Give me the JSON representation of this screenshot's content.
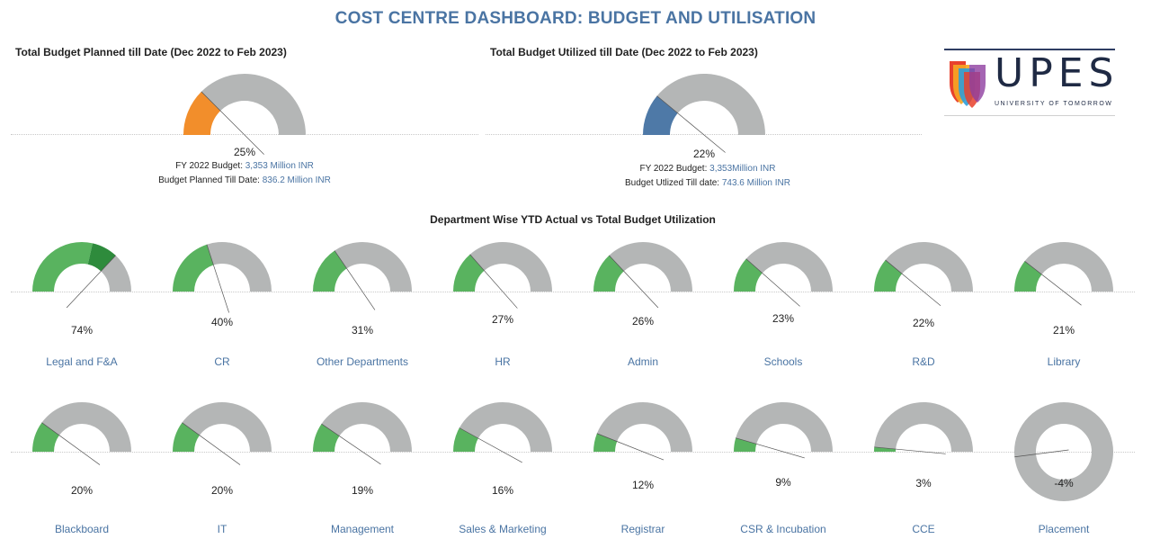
{
  "title": "COST CENTRE DASHBOARD: BUDGET AND UTILISATION",
  "logo": {
    "name": "UPES",
    "tagline": "UNIVERSITY OF TOMORROW"
  },
  "colors": {
    "orange": "#f28e2b",
    "blue": "#4e79a7",
    "green": "#59b35f",
    "dark_green": "#2e8b3c",
    "grey": "#b4b6b6"
  },
  "planned": {
    "title": "Total Budget Planned till Date (Dec 2022 to Feb 2023)",
    "percent_label": "25%",
    "fy_label": "FY 2022 Budget:",
    "fy_value": "3,353 Million INR",
    "till_label": "Budget Planned Till Date:",
    "till_value": "836.2 Million INR"
  },
  "utilized": {
    "title": "Total Budget Utilized till Date (Dec 2022 to Feb 2023)",
    "percent_label": "22%",
    "fy_label": "FY 2022 Budget:",
    "fy_value": "3,353Million INR",
    "till_label": "Budget Utlized Till date:",
    "till_value": "743.6 Million INR"
  },
  "dept_title": "Department Wise YTD Actual vs Total Budget Utilization",
  "chart_data": [
    {
      "type": "gauge",
      "title": "Total Budget Planned till Date (Dec 2022 to Feb 2023)",
      "value_pct": 25,
      "color": "orange"
    },
    {
      "type": "gauge",
      "title": "Total Budget Utilized till Date (Dec 2022 to Feb 2023)",
      "value_pct": 22,
      "color": "blue"
    },
    {
      "type": "gauge",
      "title": "Department Wise YTD Actual vs Total Budget Utilization",
      "categories": [
        "Legal and F&A",
        "CR",
        "Other Departments",
        "HR",
        "Admin",
        "Schools",
        "R&D",
        "Library",
        "Blackboard",
        "IT",
        "Management",
        "Sales & Marketing",
        "Registrar",
        "CSR & Incubation",
        "CCE",
        "Placement"
      ],
      "values": [
        74,
        40,
        31,
        27,
        26,
        23,
        22,
        21,
        20,
        20,
        19,
        16,
        12,
        9,
        3,
        -4
      ],
      "labels": [
        "74%",
        "40%",
        "31%",
        "27%",
        "26%",
        "23%",
        "22%",
        "21%",
        "20%",
        "20%",
        "19%",
        "16%",
        "12%",
        "9%",
        "3%",
        "-4%"
      ]
    }
  ]
}
